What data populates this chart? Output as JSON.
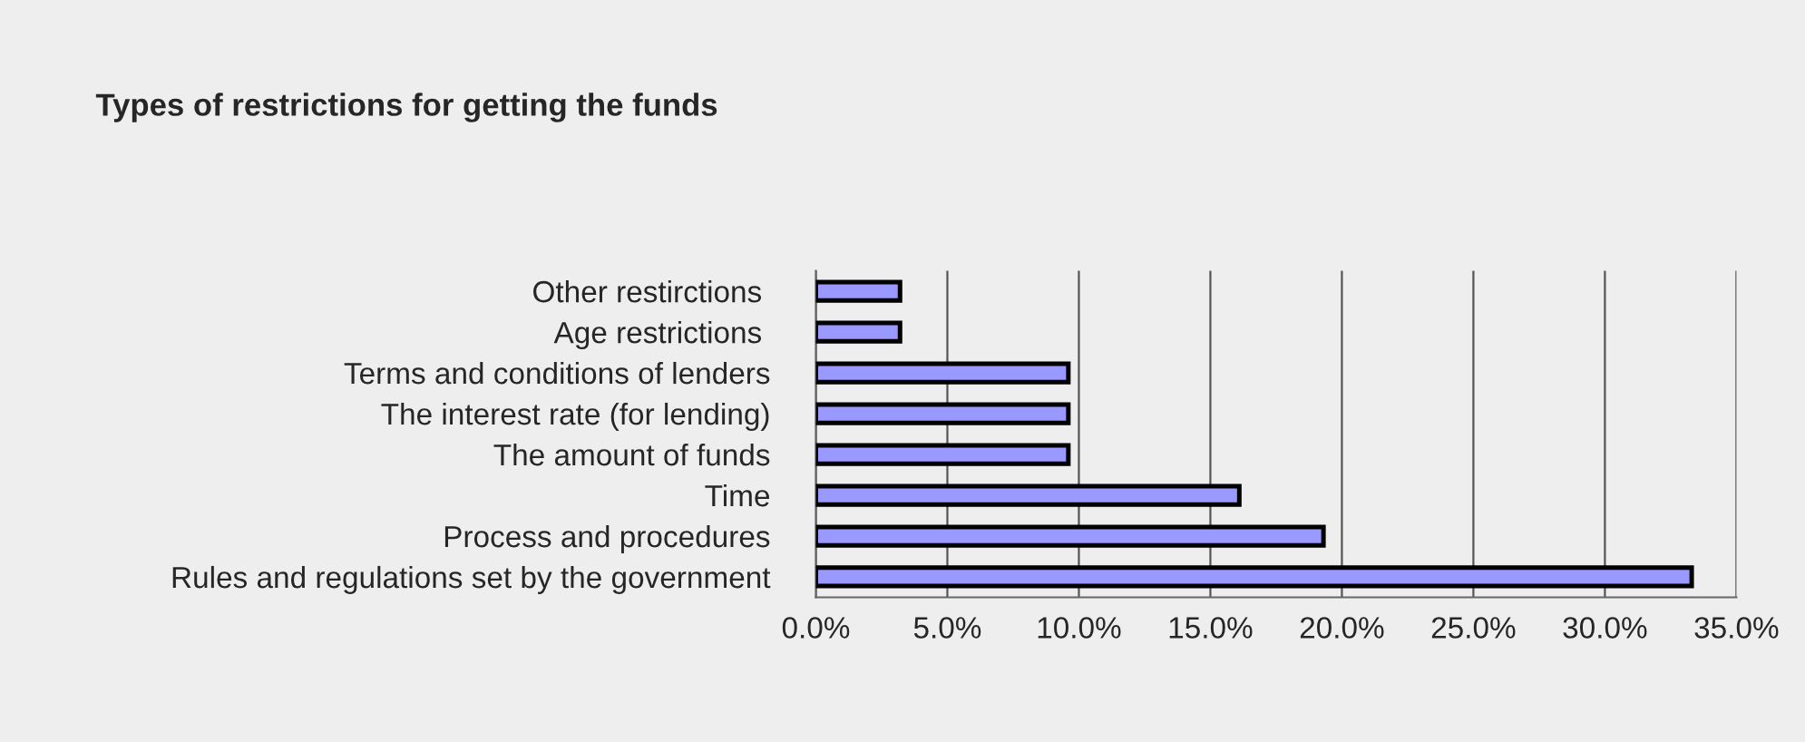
{
  "chart_data": {
    "type": "bar",
    "orientation": "horizontal",
    "title": "Types of restrictions for getting the funds",
    "categories": [
      "Other restirctions ",
      "Age restrictions ",
      "Terms and conditions of lenders",
      "The interest rate (for lending)",
      "The amount of funds",
      "Time",
      "Process and procedures",
      "Rules and regulations set by the government"
    ],
    "values": [
      3.2,
      3.2,
      9.6,
      9.6,
      9.6,
      16.1,
      19.3,
      33.3
    ],
    "color": "#9999ff",
    "xlim": [
      0,
      35
    ],
    "xticks": [
      {
        "value": 0,
        "label": "0.0%"
      },
      {
        "value": 5,
        "label": "5.0%"
      },
      {
        "value": 10,
        "label": "10.0%"
      },
      {
        "value": 15,
        "label": "15.0%"
      },
      {
        "value": 20,
        "label": "20.0%"
      },
      {
        "value": 25,
        "label": "25.0%"
      },
      {
        "value": 30,
        "label": "30.0%"
      },
      {
        "value": 35,
        "label": "35.0%"
      }
    ],
    "grid": "x"
  }
}
